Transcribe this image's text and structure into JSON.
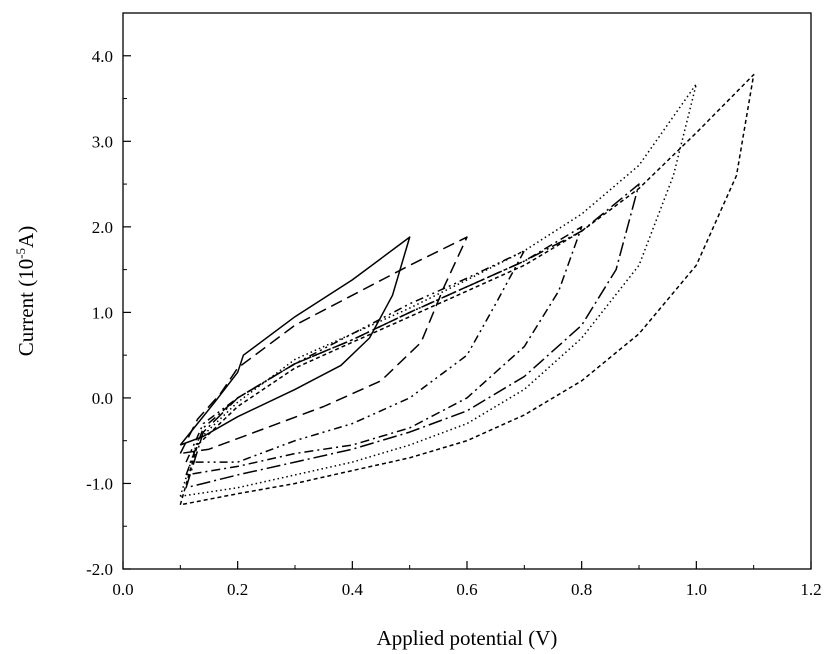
{
  "chart_data": {
    "type": "line",
    "title": "",
    "xlabel": "Applied potential (V)",
    "ylabel_parts": {
      "prefix": "Current (10",
      "exponent": "-5",
      "suffix": "A)"
    },
    "xlim": [
      0.0,
      1.2
    ],
    "ylim": [
      -2.0,
      4.5
    ],
    "x_ticks": [
      0.0,
      0.2,
      0.4,
      0.6,
      0.8,
      1.0,
      1.2
    ],
    "x_tick_labels": [
      "0.0",
      "0.2",
      "0.4",
      "0.6",
      "0.8",
      "1.0",
      "1.2"
    ],
    "y_ticks": [
      -2.0,
      -1.0,
      0.0,
      1.0,
      2.0,
      3.0,
      4.0
    ],
    "y_tick_labels": [
      "-2.0",
      "-1.0",
      "0.0",
      "1.0",
      "2.0",
      "3.0",
      "4.0"
    ],
    "grid": false,
    "legend": "none",
    "series": [
      {
        "style": "solid",
        "points": [
          [
            0.1,
            -0.55
          ],
          [
            0.13,
            -0.3
          ],
          [
            0.16,
            -0.05
          ],
          [
            0.2,
            0.3
          ],
          [
            0.21,
            0.5
          ],
          [
            0.3,
            0.95
          ],
          [
            0.4,
            1.38
          ],
          [
            0.5,
            1.88
          ],
          [
            0.47,
            1.2
          ],
          [
            0.43,
            0.7
          ],
          [
            0.38,
            0.38
          ],
          [
            0.3,
            0.1
          ],
          [
            0.2,
            -0.22
          ],
          [
            0.14,
            -0.45
          ],
          [
            0.1,
            -0.55
          ]
        ]
      },
      {
        "style": "dashed",
        "points": [
          [
            0.1,
            -0.65
          ],
          [
            0.13,
            -0.25
          ],
          [
            0.17,
            0.05
          ],
          [
            0.2,
            0.35
          ],
          [
            0.3,
            0.85
          ],
          [
            0.4,
            1.2
          ],
          [
            0.5,
            1.55
          ],
          [
            0.6,
            1.88
          ],
          [
            0.56,
            1.3
          ],
          [
            0.52,
            0.65
          ],
          [
            0.45,
            0.2
          ],
          [
            0.35,
            -0.1
          ],
          [
            0.25,
            -0.35
          ],
          [
            0.15,
            -0.6
          ],
          [
            0.1,
            -0.65
          ]
        ]
      },
      {
        "style": "dash-dot-dot",
        "points": [
          [
            0.11,
            -0.75
          ],
          [
            0.14,
            -0.3
          ],
          [
            0.2,
            0.0
          ],
          [
            0.3,
            0.4
          ],
          [
            0.4,
            0.75
          ],
          [
            0.5,
            1.1
          ],
          [
            0.6,
            1.4
          ],
          [
            0.7,
            1.72
          ],
          [
            0.65,
            1.1
          ],
          [
            0.6,
            0.5
          ],
          [
            0.5,
            0.0
          ],
          [
            0.4,
            -0.3
          ],
          [
            0.3,
            -0.5
          ],
          [
            0.2,
            -0.75
          ],
          [
            0.11,
            -0.75
          ]
        ]
      },
      {
        "style": "dash-dot",
        "points": [
          [
            0.11,
            -0.9
          ],
          [
            0.14,
            -0.35
          ],
          [
            0.2,
            0.0
          ],
          [
            0.3,
            0.4
          ],
          [
            0.4,
            0.68
          ],
          [
            0.5,
            1.0
          ],
          [
            0.6,
            1.3
          ],
          [
            0.7,
            1.6
          ],
          [
            0.8,
            2.0
          ],
          [
            0.76,
            1.25
          ],
          [
            0.7,
            0.6
          ],
          [
            0.6,
            0.0
          ],
          [
            0.5,
            -0.35
          ],
          [
            0.4,
            -0.55
          ],
          [
            0.3,
            -0.65
          ],
          [
            0.2,
            -0.8
          ],
          [
            0.11,
            -0.9
          ]
        ]
      },
      {
        "style": "long-dash-dot",
        "points": [
          [
            0.11,
            -1.05
          ],
          [
            0.14,
            -0.4
          ],
          [
            0.2,
            0.0
          ],
          [
            0.3,
            0.4
          ],
          [
            0.4,
            0.68
          ],
          [
            0.5,
            1.0
          ],
          [
            0.6,
            1.3
          ],
          [
            0.7,
            1.6
          ],
          [
            0.8,
            1.95
          ],
          [
            0.9,
            2.5
          ],
          [
            0.86,
            1.5
          ],
          [
            0.8,
            0.85
          ],
          [
            0.7,
            0.25
          ],
          [
            0.6,
            -0.15
          ],
          [
            0.5,
            -0.4
          ],
          [
            0.4,
            -0.6
          ],
          [
            0.3,
            -0.75
          ],
          [
            0.2,
            -0.9
          ],
          [
            0.11,
            -1.05
          ]
        ]
      },
      {
        "style": "dotted",
        "points": [
          [
            0.1,
            -1.15
          ],
          [
            0.13,
            -0.5
          ],
          [
            0.2,
            -0.05
          ],
          [
            0.3,
            0.45
          ],
          [
            0.4,
            0.75
          ],
          [
            0.5,
            1.05
          ],
          [
            0.6,
            1.38
          ],
          [
            0.7,
            1.72
          ],
          [
            0.8,
            2.15
          ],
          [
            0.9,
            2.72
          ],
          [
            1.0,
            3.67
          ],
          [
            0.96,
            2.6
          ],
          [
            0.9,
            1.55
          ],
          [
            0.8,
            0.7
          ],
          [
            0.7,
            0.1
          ],
          [
            0.6,
            -0.3
          ],
          [
            0.5,
            -0.55
          ],
          [
            0.4,
            -0.75
          ],
          [
            0.3,
            -0.9
          ],
          [
            0.2,
            -1.05
          ],
          [
            0.1,
            -1.15
          ]
        ]
      },
      {
        "style": "short-dashed",
        "points": [
          [
            0.1,
            -1.25
          ],
          [
            0.13,
            -0.55
          ],
          [
            0.2,
            -0.1
          ],
          [
            0.3,
            0.35
          ],
          [
            0.4,
            0.65
          ],
          [
            0.5,
            0.95
          ],
          [
            0.6,
            1.25
          ],
          [
            0.7,
            1.55
          ],
          [
            0.8,
            1.95
          ],
          [
            0.9,
            2.45
          ],
          [
            1.0,
            3.1
          ],
          [
            1.1,
            3.78
          ],
          [
            1.07,
            2.6
          ],
          [
            1.0,
            1.55
          ],
          [
            0.9,
            0.75
          ],
          [
            0.8,
            0.2
          ],
          [
            0.7,
            -0.2
          ],
          [
            0.6,
            -0.5
          ],
          [
            0.5,
            -0.7
          ],
          [
            0.4,
            -0.85
          ],
          [
            0.3,
            -1.0
          ],
          [
            0.2,
            -1.12
          ],
          [
            0.1,
            -1.25
          ]
        ]
      }
    ]
  }
}
